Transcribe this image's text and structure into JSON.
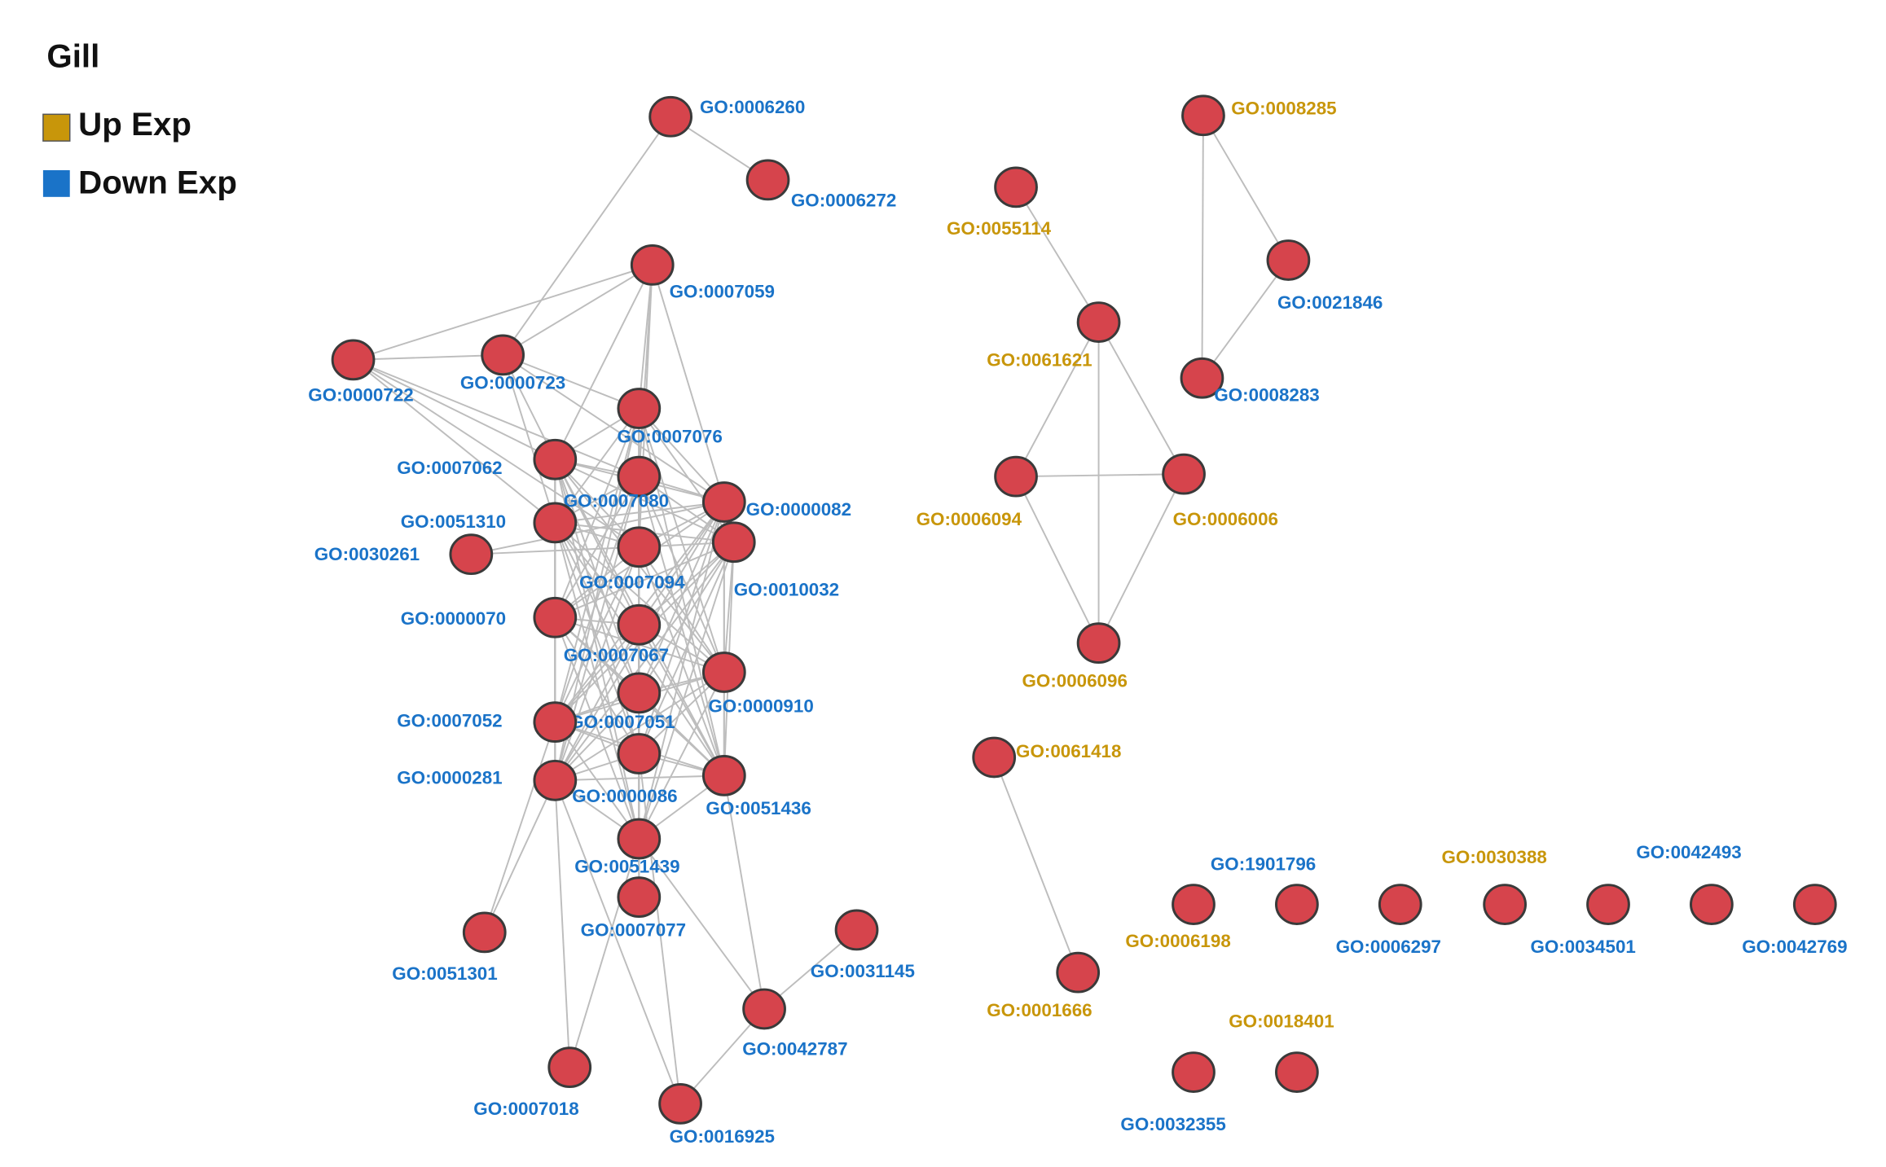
{
  "title": "Gill",
  "legend": [
    {
      "label": "Up Exp",
      "color": "#c8960a"
    },
    {
      "label": "Down Exp",
      "color": "#1a73c8"
    }
  ],
  "nodes": [
    {
      "label": "GO:0006260",
      "color": "#1a73c8"
    },
    {
      "label": "GO:0006272",
      "color": "#1a73c8"
    },
    {
      "label": "GO:0007059",
      "color": "#1a73c8"
    },
    {
      "label": "GO:0000722",
      "color": "#1a73c8"
    },
    {
      "label": "GO:0000723",
      "color": "#1a73c8"
    },
    {
      "label": "GO:0007076",
      "color": "#1a73c8"
    },
    {
      "label": "GO:0007062",
      "color": "#1a73c8"
    },
    {
      "label": "GO:0007080",
      "color": "#1a73c8"
    },
    {
      "label": "GO:0000082",
      "color": "#1a73c8"
    },
    {
      "label": "GO:0051310",
      "color": "#1a73c8"
    },
    {
      "label": "GO:0030261",
      "color": "#1a73c8"
    },
    {
      "label": "GO:0007094",
      "color": "#1a73c8"
    },
    {
      "label": "GO:0010032",
      "color": "#1a73c8"
    },
    {
      "label": "GO:0000070",
      "color": "#1a73c8"
    },
    {
      "label": "GO:0007067",
      "color": "#1a73c8"
    },
    {
      "label": "GO:0000910",
      "color": "#1a73c8"
    },
    {
      "label": "GO:0007051",
      "color": "#1a73c8"
    },
    {
      "label": "GO:0007052",
      "color": "#1a73c8"
    },
    {
      "label": "GO:0000086",
      "color": "#1a73c8"
    },
    {
      "label": "GO:0051436",
      "color": "#1a73c8"
    },
    {
      "label": "GO:0000281",
      "color": "#1a73c8"
    },
    {
      "label": "GO:0051439",
      "color": "#1a73c8"
    },
    {
      "label": "GO:0007077",
      "color": "#1a73c8"
    },
    {
      "label": "GO:0051301",
      "color": "#1a73c8"
    },
    {
      "label": "GO:0031145",
      "color": "#1a73c8"
    },
    {
      "label": "GO:0042787",
      "color": "#1a73c8"
    },
    {
      "label": "GO:0007018",
      "color": "#1a73c8"
    },
    {
      "label": "GO:0016925",
      "color": "#1a73c8"
    },
    {
      "label": "GO:0008285",
      "color": "#c8960a"
    },
    {
      "label": "GO:0055114",
      "color": "#c8960a"
    },
    {
      "label": "GO:0021846",
      "color": "#1a73c8"
    },
    {
      "label": "GO:0061621",
      "color": "#c8960a"
    },
    {
      "label": "GO:0008283",
      "color": "#1a73c8"
    },
    {
      "label": "GO:0006094",
      "color": "#c8960a"
    },
    {
      "label": "GO:0006006",
      "color": "#c8960a"
    },
    {
      "label": "GO:0006096",
      "color": "#c8960a"
    },
    {
      "label": "GO:0061418",
      "color": "#c8960a"
    },
    {
      "label": "GO:0001666",
      "color": "#c8960a"
    },
    {
      "label": "GO:0006198",
      "color": "#c8960a"
    },
    {
      "label": "GO:1901796",
      "color": "#1a73c8"
    },
    {
      "label": "GO:0006297",
      "color": "#1a73c8"
    },
    {
      "label": "GO:0030388",
      "color": "#c8960a"
    },
    {
      "label": "GO:0034501",
      "color": "#1a73c8"
    },
    {
      "label": "GO:0042493",
      "color": "#1a73c8"
    },
    {
      "label": "GO:0042769",
      "color": "#1a73c8"
    },
    {
      "label": "GO:0032355",
      "color": "#1a73c8"
    },
    {
      "label": "GO:0018401",
      "color": "#c8960a"
    }
  ]
}
